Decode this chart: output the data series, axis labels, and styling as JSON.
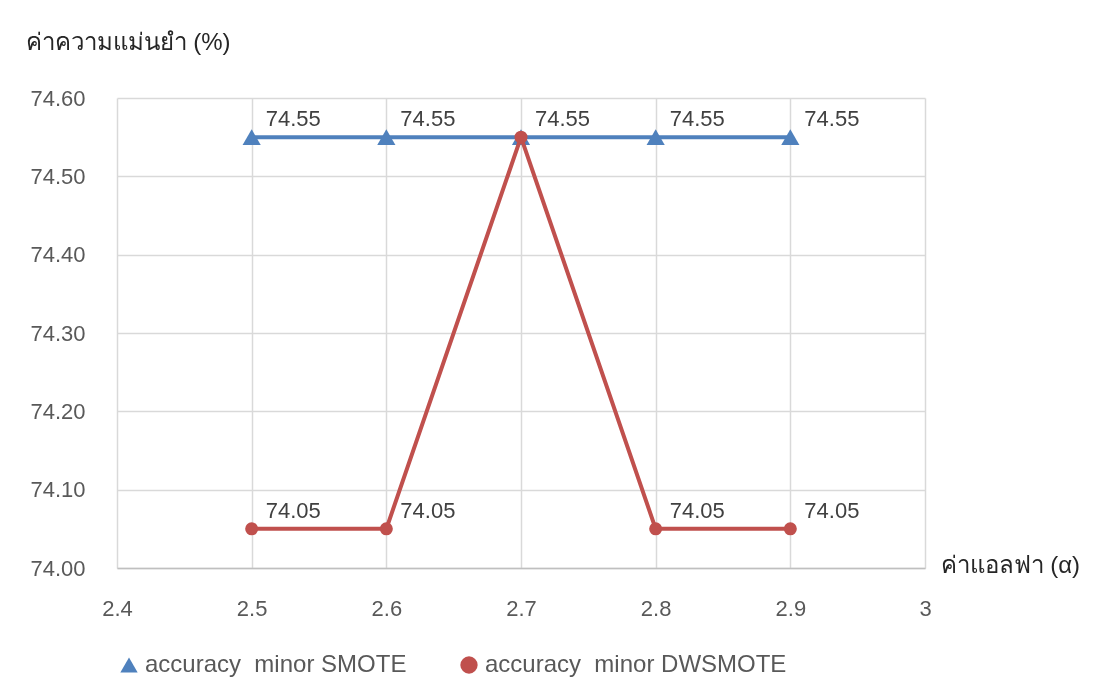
{
  "chart_data": {
    "type": "line",
    "xlabel": "ค่าแอลฟา (α)",
    "ylabel": "ค่าความแม่นยำ (%)",
    "x": [
      2.5,
      2.6,
      2.7,
      2.8,
      2.9
    ],
    "series": [
      {
        "name": "accuracy  minor SMOTE",
        "color": "#4f81bd",
        "marker": "triangle",
        "values": [
          74.55,
          74.55,
          74.55,
          74.55,
          74.55
        ],
        "value_labels": [
          "74.55",
          "74.55",
          "74.55",
          "74.55",
          "74.55"
        ]
      },
      {
        "name": "accuracy  minor DWSMOTE",
        "color": "#c0504d",
        "marker": "circle",
        "values": [
          74.05,
          74.05,
          74.55,
          74.05,
          74.05
        ],
        "value_labels": [
          "74.05",
          "74.05",
          null,
          "74.05",
          "74.05"
        ]
      }
    ],
    "xlim": [
      2.4,
      3
    ],
    "xticks": [
      2.4,
      2.5,
      2.6,
      2.7,
      2.8,
      2.9,
      3
    ],
    "ylim": [
      74,
      74.6
    ],
    "yticks": [
      {
        "value": 74,
        "label": "74.00"
      },
      {
        "value": 74.1,
        "label": "74.10"
      },
      {
        "value": 74.2,
        "label": "74.20"
      },
      {
        "value": 74.3,
        "label": "74.30"
      },
      {
        "value": 74.4,
        "label": "74.40"
      },
      {
        "value": 74.5,
        "label": "74.50"
      },
      {
        "value": 74.6,
        "label": "74.60"
      }
    ],
    "grid": true,
    "legend": "bottom"
  }
}
